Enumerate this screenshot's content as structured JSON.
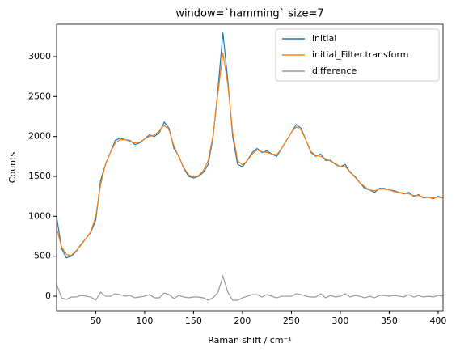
{
  "chart_data": {
    "type": "line",
    "title": "window=`hamming` size=7",
    "xlabel": "Raman shift / cm⁻¹",
    "ylabel": "Counts",
    "x": [
      10,
      15,
      20,
      25,
      30,
      35,
      40,
      45,
      50,
      55,
      60,
      65,
      70,
      75,
      80,
      85,
      90,
      95,
      100,
      105,
      110,
      115,
      120,
      125,
      130,
      135,
      140,
      145,
      150,
      155,
      160,
      165,
      170,
      175,
      180,
      185,
      190,
      195,
      200,
      205,
      210,
      215,
      220,
      225,
      230,
      235,
      240,
      245,
      250,
      255,
      260,
      265,
      270,
      275,
      280,
      285,
      290,
      295,
      300,
      305,
      310,
      315,
      320,
      325,
      330,
      335,
      340,
      345,
      350,
      355,
      360,
      365,
      370,
      375,
      380,
      385,
      390,
      395,
      400,
      405
    ],
    "series": [
      {
        "name": "initial",
        "color": "#1f77b4",
        "values": [
          1000,
          600,
          480,
          500,
          560,
          650,
          720,
          800,
          950,
          1450,
          1650,
          1800,
          1950,
          1980,
          1960,
          1950,
          1900,
          1920,
          1970,
          2020,
          2000,
          2050,
          2180,
          2100,
          1850,
          1750,
          1600,
          1500,
          1480,
          1500,
          1550,
          1650,
          2000,
          2600,
          3300,
          2700,
          2000,
          1650,
          1620,
          1700,
          1800,
          1850,
          1800,
          1820,
          1780,
          1750,
          1850,
          1950,
          2050,
          2150,
          2100,
          1950,
          1800,
          1750,
          1780,
          1700,
          1700,
          1650,
          1620,
          1650,
          1550,
          1500,
          1420,
          1350,
          1330,
          1300,
          1350,
          1350,
          1330,
          1320,
          1300,
          1280,
          1300,
          1250,
          1270,
          1230,
          1240,
          1220,
          1250,
          1230
        ]
      },
      {
        "name": "initial_Filter.transform",
        "color": "#ff7f0e",
        "values": [
          850,
          620,
          520,
          510,
          570,
          640,
          720,
          810,
          1000,
          1400,
          1650,
          1800,
          1920,
          1960,
          1960,
          1940,
          1920,
          1930,
          1970,
          2000,
          2020,
          2070,
          2140,
          2080,
          1880,
          1740,
          1610,
          1520,
          1490,
          1510,
          1570,
          1700,
          2020,
          2550,
          3050,
          2650,
          2050,
          1700,
          1640,
          1700,
          1780,
          1830,
          1810,
          1800,
          1780,
          1770,
          1850,
          1950,
          2050,
          2120,
          2080,
          1950,
          1810,
          1760,
          1750,
          1720,
          1690,
          1660,
          1620,
          1620,
          1560,
          1490,
          1420,
          1370,
          1330,
          1320,
          1340,
          1340,
          1330,
          1310,
          1300,
          1290,
          1280,
          1260,
          1260,
          1240,
          1240,
          1230,
          1240,
          1230
        ]
      },
      {
        "name": "difference",
        "color": "#999999",
        "values": [
          150,
          -20,
          -40,
          -10,
          -10,
          10,
          0,
          -10,
          -50,
          50,
          0,
          0,
          30,
          20,
          0,
          10,
          -20,
          -10,
          0,
          20,
          -20,
          -20,
          40,
          20,
          -30,
          10,
          -10,
          -20,
          -10,
          -10,
          -20,
          -50,
          -20,
          50,
          250,
          50,
          -50,
          -50,
          -20,
          0,
          20,
          20,
          -10,
          20,
          0,
          -20,
          0,
          0,
          0,
          30,
          20,
          0,
          -10,
          -10,
          30,
          -20,
          10,
          -10,
          0,
          30,
          -10,
          10,
          0,
          -20,
          0,
          -20,
          10,
          10,
          0,
          10,
          0,
          -10,
          20,
          -10,
          10,
          -10,
          0,
          -10,
          10,
          0
        ]
      }
    ],
    "xlim": [
      10,
      405
    ],
    "ylim": [
      -182,
      3405
    ],
    "xticks": [
      50,
      100,
      150,
      200,
      250,
      300,
      350,
      400
    ],
    "yticks": [
      0,
      500,
      1000,
      1500,
      2000,
      2500,
      3000
    ],
    "legend": "upper right"
  }
}
